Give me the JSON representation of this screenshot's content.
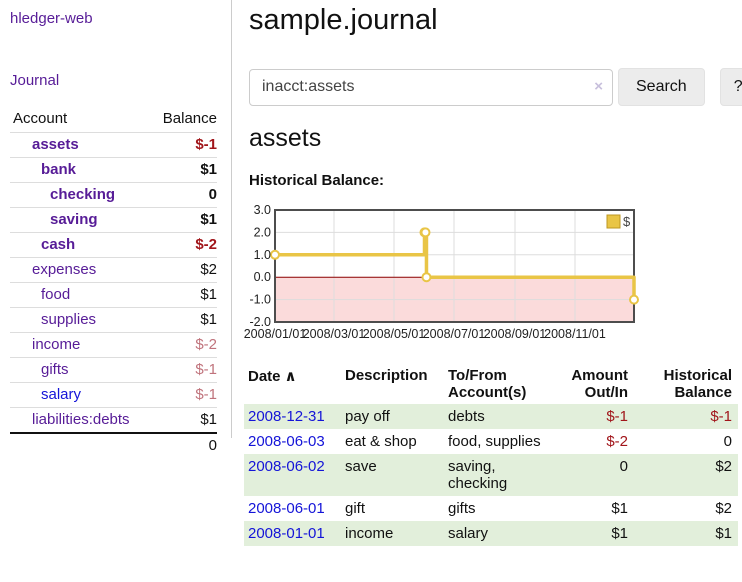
{
  "app": {
    "title": "hledger-web"
  },
  "nav": {
    "journal_label": "Journal"
  },
  "sidebar": {
    "headers": {
      "account": "Account",
      "balance": "Balance"
    },
    "accounts": [
      {
        "name": "assets",
        "depth": 1,
        "bold": true,
        "link_color": "purple",
        "balance": "$-1",
        "balance_style": "neg-strong"
      },
      {
        "name": "bank",
        "depth": 2,
        "bold": true,
        "link_color": "purple",
        "balance": "$1",
        "balance_style": "pos"
      },
      {
        "name": "checking",
        "depth": 3,
        "bold": true,
        "link_color": "purple",
        "balance": "0",
        "balance_style": "pos"
      },
      {
        "name": "saving",
        "depth": 3,
        "bold": true,
        "link_color": "purple",
        "balance": "$1",
        "balance_style": "pos"
      },
      {
        "name": "cash",
        "depth": 2,
        "bold": true,
        "link_color": "purple",
        "balance": "$-2",
        "balance_style": "neg-strong"
      },
      {
        "name": "expenses",
        "depth": 1,
        "bold": false,
        "link_color": "purple",
        "balance": "$2",
        "balance_style": "pos"
      },
      {
        "name": "food",
        "depth": 2,
        "bold": false,
        "link_color": "purple",
        "balance": "$1",
        "balance_style": "pos"
      },
      {
        "name": "supplies",
        "depth": 2,
        "bold": false,
        "link_color": "purple",
        "balance": "$1",
        "balance_style": "pos"
      },
      {
        "name": "income",
        "depth": 1,
        "bold": false,
        "link_color": "purple",
        "balance": "$-2",
        "balance_style": "neg-muted"
      },
      {
        "name": "gifts",
        "depth": 2,
        "bold": false,
        "link_color": "purple",
        "balance": "$-1",
        "balance_style": "neg-muted"
      },
      {
        "name": "salary",
        "depth": 2,
        "bold": false,
        "link_color": "blue",
        "balance": "$-1",
        "balance_style": "neg-muted"
      },
      {
        "name": "liabilities:debts",
        "depth": 1,
        "bold": false,
        "link_color": "purple",
        "balance": "$1",
        "balance_style": "pos"
      }
    ],
    "total": "0"
  },
  "header": {
    "title": "sample.journal"
  },
  "search": {
    "value": "inacct:assets",
    "clear_icon": "×",
    "button_label": "Search",
    "help_label": "?"
  },
  "account_page": {
    "heading": "assets",
    "chart_title": "Historical Balance:"
  },
  "chart_data": {
    "type": "line",
    "step": true,
    "title": "Historical Balance",
    "legend": [
      {
        "label": "$",
        "color": "#e9c546"
      }
    ],
    "points": [
      {
        "date": "2008-01-01",
        "value": 1
      },
      {
        "date": "2008-06-01",
        "value": 2
      },
      {
        "date": "2008-06-02",
        "value": 2
      },
      {
        "date": "2008-06-03",
        "value": 0
      },
      {
        "date": "2008-12-31",
        "value": -1
      }
    ],
    "x_domain": [
      "2008-01-01",
      "2008-12-31"
    ],
    "x_ticks": [
      "2008/01/01",
      "2008/03/01",
      "2008/05/01",
      "2008/07/01",
      "2008/09/01",
      "2008/11/01"
    ],
    "y_ticks": [
      "3.0",
      "2.0",
      "1.0",
      "0.0",
      "-1.0",
      "-2.0"
    ],
    "y_tick_values": [
      3,
      2,
      1,
      0,
      -1,
      -2
    ],
    "ylim": [
      -2,
      3
    ],
    "grid": true,
    "negative_region_shaded": true
  },
  "register": {
    "headers": {
      "date": "Date",
      "sort_arrow": "∧",
      "description": "Description",
      "accounts": "To/From Account(s)",
      "amount": "Amount Out/In",
      "balance": "Historical Balance"
    },
    "rows": [
      {
        "date": "2008-12-31",
        "description": "pay off",
        "accounts": "debts",
        "amount": "$-1",
        "amount_style": "neg-strong",
        "balance": "$-1",
        "balance_style": "neg-strong",
        "shaded": true
      },
      {
        "date": "2008-06-03",
        "description": "eat & shop",
        "accounts": "food, supplies",
        "amount": "$-2",
        "amount_style": "neg-strong",
        "balance": "0",
        "balance_style": "pos",
        "shaded": false
      },
      {
        "date": "2008-06-02",
        "description": "save",
        "accounts": "saving, checking",
        "amount": "0",
        "amount_style": "pos",
        "balance": "$2",
        "balance_style": "pos",
        "shaded": true
      },
      {
        "date": "2008-06-01",
        "description": "gift",
        "accounts": "gifts",
        "amount": "$1",
        "amount_style": "pos",
        "balance": "$2",
        "balance_style": "pos",
        "shaded": false
      },
      {
        "date": "2008-01-01",
        "description": "income",
        "accounts": "salary",
        "amount": "$1",
        "amount_style": "pos",
        "balance": "$1",
        "balance_style": "pos",
        "shaded": true
      }
    ]
  },
  "colors": {
    "link_purple": "#571c97",
    "link_blue": "#1414d8",
    "neg_strong": "#a1151a",
    "neg_muted": "#c0737c",
    "row_shade_green": "#e2efdb",
    "chart_line_gold": "#e9c546",
    "chart_neg_bg": "#fbdbdb",
    "chart_zero_line": "#8b0000",
    "chart_border": "#4d4d4d",
    "chart_grid": "#dddddd"
  }
}
